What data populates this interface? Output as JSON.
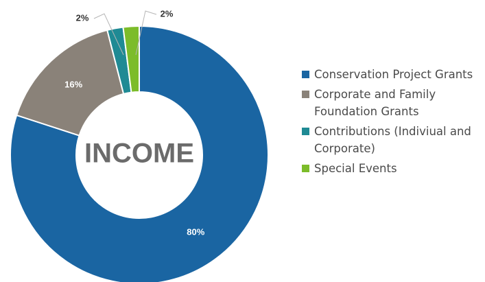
{
  "chart_data": {
    "type": "pie",
    "variant": "donut",
    "center_label": "INCOME",
    "slices": [
      {
        "name": "Conservation Project Grants",
        "value": 80,
        "label": "80%",
        "color": "#1a65a2"
      },
      {
        "name": "Corporate and Family Foundation Grants",
        "value": 16,
        "label": "16%",
        "color": "#8a8279"
      },
      {
        "name": "Contributions (Indiviual and Corporate)",
        "value": 2,
        "label": "2%",
        "color": "#1f8a94"
      },
      {
        "name": "Special Events",
        "value": 2,
        "label": "2%",
        "color": "#7cbc2a"
      }
    ],
    "legend_position": "right"
  }
}
